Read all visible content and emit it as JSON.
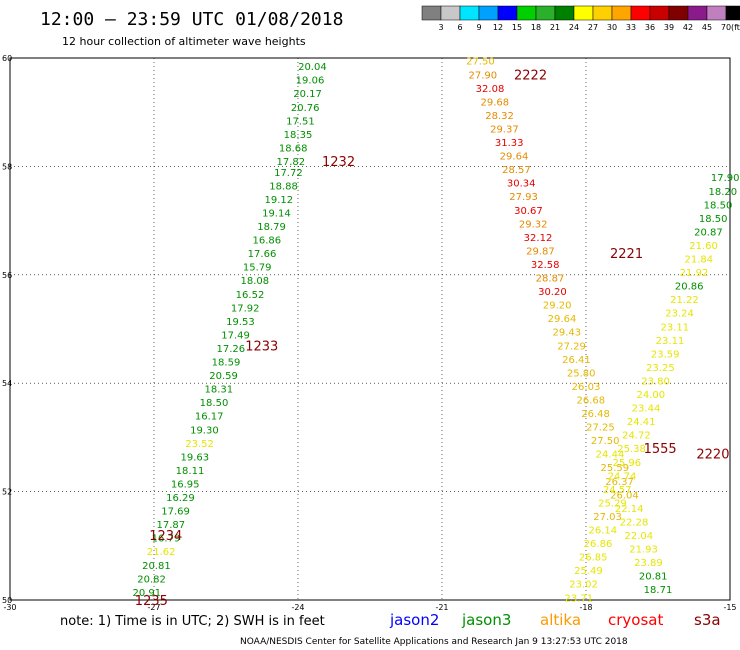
{
  "header": {
    "title": "12:00 – 23:59 UTC 01/08/2018",
    "subtitle": "12 hour collection of altimeter wave heights"
  },
  "colorbar": {
    "unit": "(ft)",
    "bins": [
      {
        "label": "",
        "color": "#808080"
      },
      {
        "label": "3",
        "color": "#c8c8c8"
      },
      {
        "label": "6",
        "color": "#00e5ff"
      },
      {
        "label": "9",
        "color": "#00a0ff"
      },
      {
        "label": "12",
        "color": "#0000ff"
      },
      {
        "label": "15",
        "color": "#00d000"
      },
      {
        "label": "18",
        "color": "#2bb02b"
      },
      {
        "label": "21",
        "color": "#008000"
      },
      {
        "label": "24",
        "color": "#ffff00"
      },
      {
        "label": "27",
        "color": "#ffd000"
      },
      {
        "label": "30",
        "color": "#ffa500"
      },
      {
        "label": "33",
        "color": "#ff0000"
      },
      {
        "label": "36",
        "color": "#c80000"
      },
      {
        "label": "39",
        "color": "#800000"
      },
      {
        "label": "42",
        "color": "#8b1a8b"
      },
      {
        "label": "45",
        "color": "#c080c0"
      },
      {
        "label": "70",
        "color": "#000000"
      }
    ]
  },
  "notes": {
    "note_text": "note:  1) Time is in UTC;  2) SWH is in feet",
    "satellites": [
      {
        "name": "jason2",
        "color": "#0000ff"
      },
      {
        "name": "jason3",
        "color": "#009000"
      },
      {
        "name": "altika",
        "color": "#ff9900"
      },
      {
        "name": "cryosat",
        "color": "#ff0000"
      },
      {
        "name": "s3a",
        "color": "#8b0000"
      }
    ],
    "footer": "NOAA/NESDIS Center for Satellite Applications and Research   Jan  9 13:27:53 UTC 2018"
  },
  "chart_data": {
    "type": "scatter",
    "title": "12:00 – 23:59 UTC 01/08/2018",
    "subtitle": "12 hour collection of altimeter wave heights",
    "xlim": [
      -30,
      -15
    ],
    "ylim": [
      50,
      60
    ],
    "x_ticks": [
      "-30",
      "-27",
      "-24",
      "-21",
      "-18",
      "-15"
    ],
    "y_ticks": [
      "50",
      "52",
      "54",
      "56",
      "58",
      "60"
    ],
    "grid": true,
    "colors": {
      "green": "#009000",
      "yellow": "#e6e600",
      "gold": "#e6b800",
      "orange": "#e68a00",
      "red": "#e60000"
    },
    "time_labels": [
      {
        "text": "1232",
        "lon": -23.5,
        "lat": 58.1
      },
      {
        "text": "1233",
        "lon": -25.1,
        "lat": 54.7
      },
      {
        "text": "1234",
        "lon": -27.1,
        "lat": 51.2
      },
      {
        "text": "1235",
        "lon": -27.4,
        "lat": 50.0
      },
      {
        "text": "2222",
        "lon": -19.5,
        "lat": 59.7
      },
      {
        "text": "2221",
        "lon": -17.5,
        "lat": 56.4
      },
      {
        "text": "2220",
        "lon": -15.7,
        "lat": 52.7
      },
      {
        "text": "1555",
        "lon": -16.8,
        "lat": 52.8
      }
    ],
    "series": [
      {
        "name": "jason3",
        "points": [
          {
            "lon": -23.7,
            "lat": 59.85,
            "swh": 20.04,
            "color": "green"
          },
          {
            "lon": -23.75,
            "lat": 59.6,
            "swh": 19.06,
            "color": "green"
          },
          {
            "lon": -23.8,
            "lat": 59.35,
            "swh": 20.17,
            "color": "green"
          },
          {
            "lon": -23.85,
            "lat": 59.1,
            "swh": 20.76,
            "color": "green"
          },
          {
            "lon": -23.95,
            "lat": 58.85,
            "swh": 17.51,
            "color": "green"
          },
          {
            "lon": -24.0,
            "lat": 58.6,
            "swh": 18.35,
            "color": "green"
          },
          {
            "lon": -24.1,
            "lat": 58.35,
            "swh": 18.68,
            "color": "green"
          },
          {
            "lon": -24.15,
            "lat": 58.1,
            "swh": 17.82,
            "color": "green"
          },
          {
            "lon": -24.2,
            "lat": 57.9,
            "swh": 17.72,
            "color": "green"
          },
          {
            "lon": -24.3,
            "lat": 57.65,
            "swh": 18.88,
            "color": "green"
          },
          {
            "lon": -24.4,
            "lat": 57.4,
            "swh": 19.12,
            "color": "green"
          },
          {
            "lon": -24.45,
            "lat": 57.15,
            "swh": 19.14,
            "color": "green"
          },
          {
            "lon": -24.55,
            "lat": 56.9,
            "swh": 18.79,
            "color": "green"
          },
          {
            "lon": -24.65,
            "lat": 56.65,
            "swh": 16.86,
            "color": "green"
          },
          {
            "lon": -24.75,
            "lat": 56.4,
            "swh": 17.66,
            "color": "green"
          },
          {
            "lon": -24.85,
            "lat": 56.15,
            "swh": 15.79,
            "color": "green"
          },
          {
            "lon": -24.9,
            "lat": 55.9,
            "swh": 18.08,
            "color": "green"
          },
          {
            "lon": -25.0,
            "lat": 55.65,
            "swh": 16.52,
            "color": "green"
          },
          {
            "lon": -25.1,
            "lat": 55.4,
            "swh": 17.92,
            "color": "green"
          },
          {
            "lon": -25.2,
            "lat": 55.15,
            "swh": 19.53,
            "color": "green"
          },
          {
            "lon": -25.3,
            "lat": 54.9,
            "swh": 17.49,
            "color": "green"
          },
          {
            "lon": -25.4,
            "lat": 54.65,
            "swh": 17.26,
            "color": "green"
          },
          {
            "lon": -25.5,
            "lat": 54.4,
            "swh": 18.59,
            "color": "green"
          },
          {
            "lon": -25.55,
            "lat": 54.15,
            "swh": 20.59,
            "color": "green"
          },
          {
            "lon": -25.65,
            "lat": 53.9,
            "swh": 18.31,
            "color": "green"
          },
          {
            "lon": -25.75,
            "lat": 53.65,
            "swh": 18.5,
            "color": "green"
          },
          {
            "lon": -25.85,
            "lat": 53.4,
            "swh": 16.17,
            "color": "green"
          },
          {
            "lon": -25.95,
            "lat": 53.15,
            "swh": 19.3,
            "color": "green"
          },
          {
            "lon": -26.05,
            "lat": 52.9,
            "swh": 23.52,
            "color": "yellow"
          },
          {
            "lon": -26.15,
            "lat": 52.65,
            "swh": 19.63,
            "color": "green"
          },
          {
            "lon": -26.25,
            "lat": 52.4,
            "swh": 18.11,
            "color": "green"
          },
          {
            "lon": -26.35,
            "lat": 52.15,
            "swh": 16.95,
            "color": "green"
          },
          {
            "lon": -26.45,
            "lat": 51.9,
            "swh": 16.29,
            "color": "green"
          },
          {
            "lon": -26.55,
            "lat": 51.65,
            "swh": 17.69,
            "color": "green"
          },
          {
            "lon": -26.65,
            "lat": 51.4,
            "swh": 17.87,
            "color": "green"
          },
          {
            "lon": -26.75,
            "lat": 51.15,
            "swh": 16.79,
            "color": "green"
          },
          {
            "lon": -26.85,
            "lat": 50.9,
            "swh": 21.62,
            "color": "yellow"
          },
          {
            "lon": -26.95,
            "lat": 50.65,
            "swh": 20.81,
            "color": "green"
          },
          {
            "lon": -27.05,
            "lat": 50.4,
            "swh": 20.82,
            "color": "green"
          },
          {
            "lon": -27.15,
            "lat": 50.15,
            "swh": 20.91,
            "color": "green"
          },
          {
            "lon": -27.25,
            "lat": 49.9,
            "swh": 19.33,
            "color": "green"
          },
          {
            "lon": -27.35,
            "lat": 49.65,
            "swh": 18.33,
            "color": "green"
          },
          {
            "lon": -27.45,
            "lat": 49.4,
            "swh": 19.24,
            "color": "green"
          },
          {
            "lon": -27.55,
            "lat": 49.15,
            "swh": 16.5,
            "color": "green"
          }
        ]
      },
      {
        "name": "altika",
        "points": [
          {
            "lon": -20.2,
            "lat": 59.95,
            "swh": 27.5,
            "color": "gold"
          },
          {
            "lon": -20.15,
            "lat": 59.7,
            "swh": 27.9,
            "color": "orange"
          },
          {
            "lon": -20.0,
            "lat": 59.45,
            "swh": 32.08,
            "color": "red"
          },
          {
            "lon": -19.9,
            "lat": 59.2,
            "swh": 29.68,
            "color": "orange"
          },
          {
            "lon": -19.8,
            "lat": 58.95,
            "swh": 28.32,
            "color": "orange"
          },
          {
            "lon": -19.7,
            "lat": 58.7,
            "swh": 29.37,
            "color": "orange"
          },
          {
            "lon": -19.6,
            "lat": 58.45,
            "swh": 31.33,
            "color": "red"
          },
          {
            "lon": -19.5,
            "lat": 58.2,
            "swh": 29.64,
            "color": "orange"
          },
          {
            "lon": -19.45,
            "lat": 57.95,
            "swh": 28.57,
            "color": "orange"
          },
          {
            "lon": -19.35,
            "lat": 57.7,
            "swh": 30.34,
            "color": "red"
          },
          {
            "lon": -19.3,
            "lat": 57.45,
            "swh": 27.93,
            "color": "orange"
          },
          {
            "lon": -19.2,
            "lat": 57.2,
            "swh": 30.67,
            "color": "red"
          },
          {
            "lon": -19.1,
            "lat": 56.95,
            "swh": 29.32,
            "color": "orange"
          },
          {
            "lon": -19.0,
            "lat": 56.7,
            "swh": 32.12,
            "color": "red"
          },
          {
            "lon": -18.95,
            "lat": 56.45,
            "swh": 29.87,
            "color": "orange"
          },
          {
            "lon": -18.85,
            "lat": 56.2,
            "swh": 32.58,
            "color": "red"
          },
          {
            "lon": -18.75,
            "lat": 55.95,
            "swh": 28.87,
            "color": "orange"
          },
          {
            "lon": -18.7,
            "lat": 55.7,
            "swh": 30.2,
            "color": "red"
          },
          {
            "lon": -18.6,
            "lat": 55.45,
            "swh": 29.2,
            "color": "gold"
          },
          {
            "lon": -18.5,
            "lat": 55.2,
            "swh": 29.64,
            "color": "gold"
          },
          {
            "lon": -18.4,
            "lat": 54.95,
            "swh": 29.43,
            "color": "gold"
          },
          {
            "lon": -18.3,
            "lat": 54.7,
            "swh": 27.29,
            "color": "gold"
          },
          {
            "lon": -18.2,
            "lat": 54.45,
            "swh": 26.41,
            "color": "gold"
          },
          {
            "lon": -18.1,
            "lat": 54.2,
            "swh": 25.8,
            "color": "gold"
          },
          {
            "lon": -18.0,
            "lat": 53.95,
            "swh": 26.03,
            "color": "gold"
          },
          {
            "lon": -17.9,
            "lat": 53.7,
            "swh": 26.68,
            "color": "gold"
          },
          {
            "lon": -17.8,
            "lat": 53.45,
            "swh": 26.48,
            "color": "gold"
          },
          {
            "lon": -17.7,
            "lat": 53.2,
            "swh": 27.25,
            "color": "gold"
          },
          {
            "lon": -17.6,
            "lat": 52.95,
            "swh": 27.5,
            "color": "gold"
          },
          {
            "lon": -17.5,
            "lat": 52.7,
            "swh": 24.44,
            "color": "yellow"
          },
          {
            "lon": -17.4,
            "lat": 52.45,
            "swh": 25.59,
            "color": "gold"
          },
          {
            "lon": -17.3,
            "lat": 52.2,
            "swh": 26.37,
            "color": "gold"
          },
          {
            "lon": -17.2,
            "lat": 51.95,
            "swh": 26.04,
            "color": "gold"
          },
          {
            "lon": -17.1,
            "lat": 51.7,
            "swh": 22.14,
            "color": "yellow"
          },
          {
            "lon": -17.0,
            "lat": 51.45,
            "swh": 22.28,
            "color": "yellow"
          },
          {
            "lon": -16.9,
            "lat": 51.2,
            "swh": 22.04,
            "color": "yellow"
          },
          {
            "lon": -16.8,
            "lat": 50.95,
            "swh": 21.93,
            "color": "yellow"
          },
          {
            "lon": -16.7,
            "lat": 50.7,
            "swh": 23.89,
            "color": "yellow"
          },
          {
            "lon": -16.6,
            "lat": 50.45,
            "swh": 20.81,
            "color": "green"
          },
          {
            "lon": -16.5,
            "lat": 50.2,
            "swh": 18.71,
            "color": "green"
          },
          {
            "lon": -16.4,
            "lat": 49.95,
            "swh": 18.44,
            "color": "green"
          },
          {
            "lon": -16.3,
            "lat": 49.7,
            "swh": 18.3,
            "color": "green"
          },
          {
            "lon": -16.2,
            "lat": 49.45,
            "swh": 18.0,
            "color": "green"
          }
        ]
      },
      {
        "name": "s3a",
        "points": [
          {
            "lon": -15.1,
            "lat": 57.8,
            "swh": 17.9,
            "color": "green"
          },
          {
            "lon": -15.15,
            "lat": 57.55,
            "swh": 18.2,
            "color": "green"
          },
          {
            "lon": -15.25,
            "lat": 57.3,
            "swh": 18.5,
            "color": "green"
          },
          {
            "lon": -15.35,
            "lat": 57.05,
            "swh": 18.5,
            "color": "green"
          },
          {
            "lon": -15.45,
            "lat": 56.8,
            "swh": 20.87,
            "color": "green"
          },
          {
            "lon": -15.55,
            "lat": 56.55,
            "swh": 21.6,
            "color": "yellow"
          },
          {
            "lon": -15.65,
            "lat": 56.3,
            "swh": 21.84,
            "color": "yellow"
          },
          {
            "lon": -15.75,
            "lat": 56.05,
            "swh": 21.92,
            "color": "yellow"
          },
          {
            "lon": -15.85,
            "lat": 55.8,
            "swh": 20.86,
            "color": "green"
          },
          {
            "lon": -15.95,
            "lat": 55.55,
            "swh": 21.22,
            "color": "yellow"
          },
          {
            "lon": -16.05,
            "lat": 55.3,
            "swh": 23.24,
            "color": "yellow"
          },
          {
            "lon": -16.15,
            "lat": 55.05,
            "swh": 23.11,
            "color": "yellow"
          },
          {
            "lon": -16.25,
            "lat": 54.8,
            "swh": 23.11,
            "color": "yellow"
          },
          {
            "lon": -16.35,
            "lat": 54.55,
            "swh": 23.59,
            "color": "yellow"
          },
          {
            "lon": -16.45,
            "lat": 54.3,
            "swh": 23.25,
            "color": "yellow"
          },
          {
            "lon": -16.55,
            "lat": 54.05,
            "swh": 23.8,
            "color": "yellow"
          },
          {
            "lon": -16.65,
            "lat": 53.8,
            "swh": 24.0,
            "color": "yellow"
          },
          {
            "lon": -16.75,
            "lat": 53.55,
            "swh": 23.44,
            "color": "yellow"
          },
          {
            "lon": -16.85,
            "lat": 53.3,
            "swh": 24.41,
            "color": "yellow"
          },
          {
            "lon": -16.95,
            "lat": 53.05,
            "swh": 24.72,
            "color": "yellow"
          },
          {
            "lon": -17.05,
            "lat": 52.8,
            "swh": 25.38,
            "color": "yellow"
          },
          {
            "lon": -17.15,
            "lat": 52.55,
            "swh": 25.96,
            "color": "yellow"
          },
          {
            "lon": -17.25,
            "lat": 52.3,
            "swh": 24.74,
            "color": "yellow"
          },
          {
            "lon": -17.35,
            "lat": 52.05,
            "swh": 24.57,
            "color": "yellow"
          },
          {
            "lon": -17.45,
            "lat": 51.8,
            "swh": 25.29,
            "color": "yellow"
          },
          {
            "lon": -17.55,
            "lat": 51.55,
            "swh": 27.03,
            "color": "gold"
          },
          {
            "lon": -17.65,
            "lat": 51.3,
            "swh": 26.14,
            "color": "yellow"
          },
          {
            "lon": -17.75,
            "lat": 51.05,
            "swh": 26.86,
            "color": "yellow"
          },
          {
            "lon": -17.85,
            "lat": 50.8,
            "swh": 26.85,
            "color": "yellow"
          },
          {
            "lon": -17.95,
            "lat": 50.55,
            "swh": 25.49,
            "color": "yellow"
          },
          {
            "lon": -18.05,
            "lat": 50.3,
            "swh": 23.02,
            "color": "yellow"
          },
          {
            "lon": -18.15,
            "lat": 50.05,
            "swh": 23.71,
            "color": "yellow"
          }
        ]
      }
    ]
  }
}
